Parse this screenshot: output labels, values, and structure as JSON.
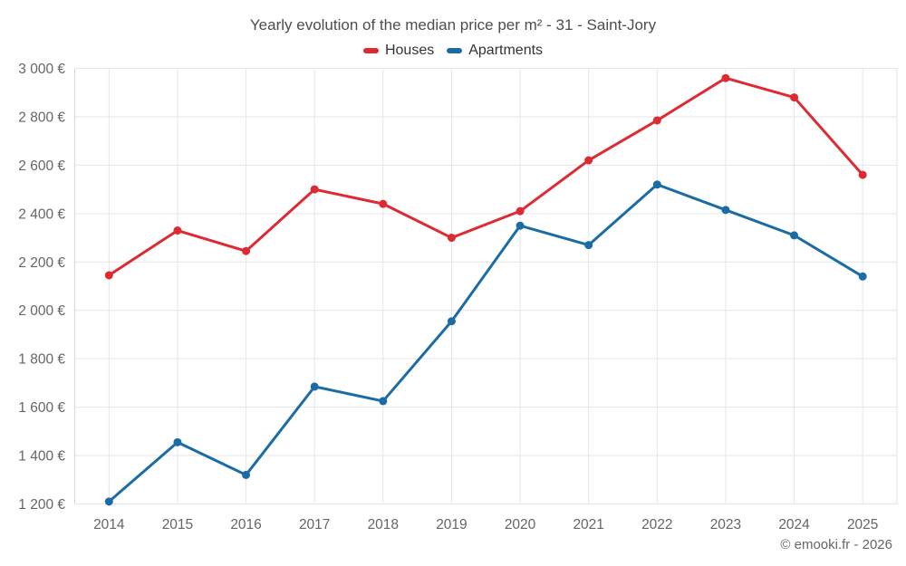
{
  "chart_data": {
    "type": "line",
    "title": "Yearly evolution of the median price per m² - 31 - Saint-Jory",
    "categories": [
      "2014",
      "2015",
      "2016",
      "2017",
      "2018",
      "2019",
      "2020",
      "2021",
      "2022",
      "2023",
      "2024",
      "2025"
    ],
    "series": [
      {
        "name": "Houses",
        "color": "#de2b33",
        "values": [
          2145,
          2330,
          2245,
          2500,
          2440,
          2300,
          2410,
          2620,
          2785,
          2960,
          2880,
          2560
        ]
      },
      {
        "name": "Apartments",
        "color": "#1b6ca5",
        "values": [
          1210,
          1455,
          1320,
          1685,
          1625,
          1955,
          2350,
          2270,
          2520,
          2415,
          2310,
          2140
        ]
      }
    ],
    "xlabel": "",
    "ylabel": "",
    "ylim": [
      1200,
      3000
    ],
    "ytick_step": 200,
    "ytick_suffix": " €",
    "grid": true,
    "legend_position": "top"
  },
  "footer": {
    "credit": "© emooki.fr - 2026"
  },
  "colors": {
    "grid": "#e6e6e6",
    "axis_line": "#d9d9d9",
    "axis_labels": "#666666",
    "title": "#4d4d4d",
    "legend_text": "#333333",
    "background": "#ffffff"
  }
}
